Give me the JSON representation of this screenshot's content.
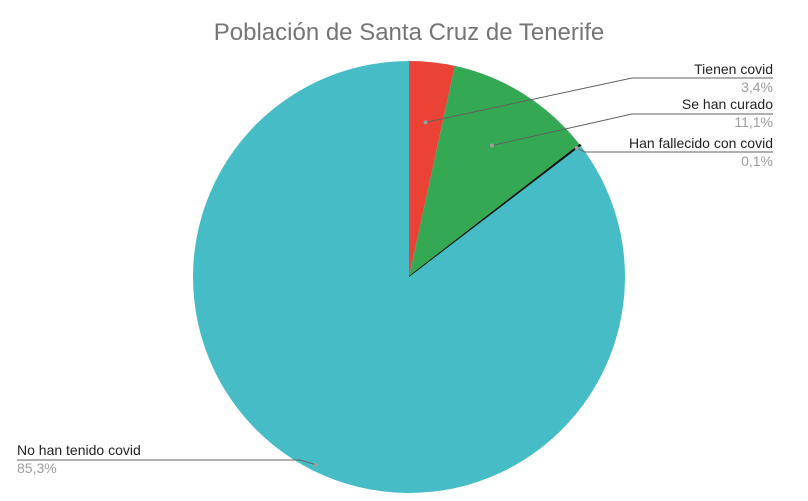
{
  "chart_data": {
    "type": "pie",
    "title": "Población de Santa Cruz de Tenerife",
    "start_angle_deg": 0,
    "direction": "clockwise",
    "legend": "labels",
    "slices": [
      {
        "label": "Tienen covid",
        "value": 3.4,
        "value_label": "3,4%",
        "color": "#ea4335"
      },
      {
        "label": "Se han curado",
        "value": 11.1,
        "value_label": "11,1%",
        "color": "#34a853"
      },
      {
        "label": "Han fallecido con covid",
        "value": 0.1,
        "value_label": "0,1%",
        "color": "#111111"
      },
      {
        "label": "No han tenido covid",
        "value": 85.3,
        "value_label": "85,3%",
        "color": "#46bdc6"
      }
    ]
  }
}
